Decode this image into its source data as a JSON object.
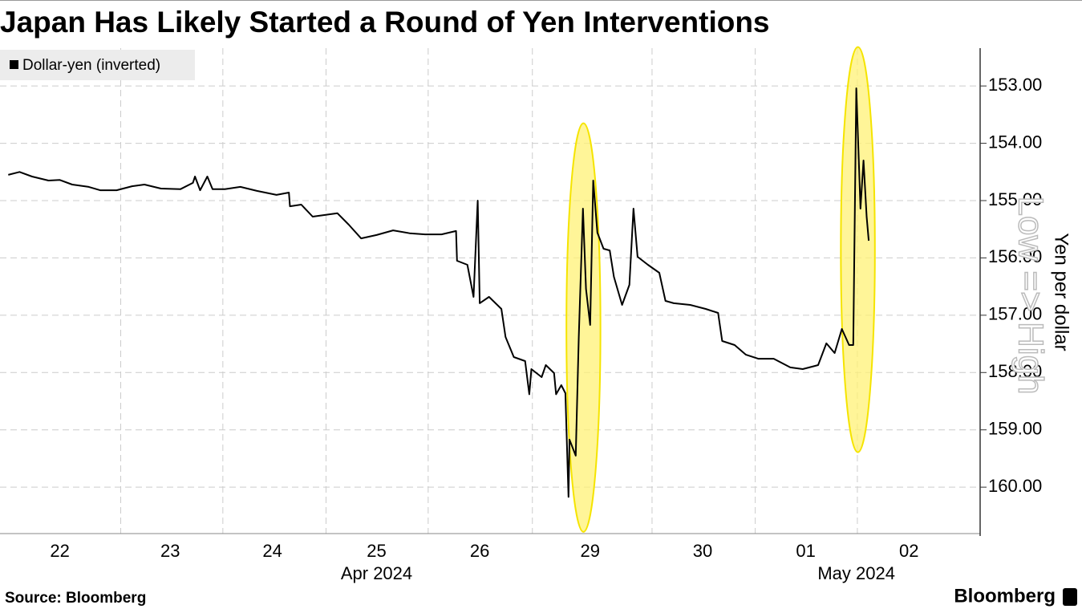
{
  "chart_data": {
    "type": "line",
    "title": "Japan Has Likely Started a Round of Yen Interventions",
    "legend_label": "Dollar-yen (inverted)",
    "ylabel": "Yen per dollar",
    "annotation": "Low => High",
    "source": "Source: Bloomberg",
    "logo": "Bloomberg",
    "y_inverted": true,
    "grid": true,
    "xlim": [
      0,
      9.5
    ],
    "ylim": [
      152.34,
      160.81
    ],
    "yticks": [
      {
        "value": 153,
        "label": "153.00"
      },
      {
        "value": 154,
        "label": "154.00"
      },
      {
        "value": 155,
        "label": "155.00"
      },
      {
        "value": 156,
        "label": "156.00"
      },
      {
        "value": 157,
        "label": "157.00"
      },
      {
        "value": 158,
        "label": "158.00"
      },
      {
        "value": 159,
        "label": "159.00"
      },
      {
        "value": 160,
        "label": "160.00"
      }
    ],
    "xticks": [
      {
        "value": 0.58,
        "label": "22"
      },
      {
        "value": 1.65,
        "label": "23"
      },
      {
        "value": 2.64,
        "label": "24"
      },
      {
        "value": 3.65,
        "label": "25"
      },
      {
        "value": 4.65,
        "label": "26"
      },
      {
        "value": 5.72,
        "label": "29"
      },
      {
        "value": 6.81,
        "label": "30"
      },
      {
        "value": 7.81,
        "label": "01"
      },
      {
        "value": 8.81,
        "label": "02"
      }
    ],
    "xgroups": [
      {
        "value": 3.65,
        "label": "Apr 2024"
      },
      {
        "value": 8.3,
        "label": "May 2024"
      }
    ],
    "xgrid": [
      1.17,
      2.16,
      3.16,
      4.15,
      5.16,
      6.32,
      7.32,
      8.31
    ],
    "highlights": [
      {
        "color": "#fff176",
        "x": [
          5.49,
          5.82
        ],
        "y": [
          153.65,
          160.78
        ]
      },
      {
        "color": "#fff176",
        "x": [
          8.15,
          8.48
        ],
        "y": [
          152.32,
          159.39
        ]
      }
    ],
    "x": [
      0.08,
      0.19,
      0.31,
      0.47,
      0.58,
      0.7,
      0.86,
      0.97,
      1.13,
      1.28,
      1.4,
      1.56,
      1.75,
      1.87,
      1.89,
      1.94,
      2.01,
      2.06,
      2.18,
      2.33,
      2.49,
      2.68,
      2.8,
      2.81,
      2.92,
      3.03,
      3.15,
      3.27,
      3.38,
      3.5,
      3.65,
      3.81,
      3.97,
      4.12,
      4.28,
      4.42,
      4.43,
      4.53,
      4.59,
      4.63,
      4.65,
      4.74,
      4.86,
      4.9,
      4.98,
      5.09,
      5.13,
      5.15,
      5.25,
      5.29,
      5.37,
      5.39,
      5.44,
      5.48,
      5.51,
      5.52,
      5.58,
      5.61,
      5.65,
      5.68,
      5.72,
      5.75,
      5.79,
      5.85,
      5.91,
      5.95,
      6.03,
      6.1,
      6.14,
      6.18,
      6.28,
      6.39,
      6.45,
      6.53,
      6.69,
      6.84,
      6.96,
      7.0,
      7.12,
      7.23,
      7.35,
      7.5,
      7.66,
      7.78,
      7.93,
      8.01,
      8.09,
      8.16,
      8.23,
      8.27,
      8.3,
      8.34,
      8.37,
      8.4,
      8.42
    ],
    "series": [
      {
        "name": "Dollar-yen (inverted)",
        "color": "#000000",
        "values": [
          154.55,
          154.5,
          154.58,
          154.65,
          154.64,
          154.72,
          154.76,
          154.82,
          154.82,
          154.75,
          154.72,
          154.79,
          154.8,
          154.69,
          154.58,
          154.82,
          154.58,
          154.8,
          154.8,
          154.76,
          154.83,
          154.9,
          154.86,
          155.1,
          155.07,
          155.28,
          155.25,
          155.22,
          155.42,
          155.66,
          155.6,
          155.52,
          155.57,
          155.59,
          155.59,
          155.53,
          156.05,
          156.12,
          156.68,
          155.0,
          156.79,
          156.68,
          156.89,
          157.38,
          157.73,
          157.8,
          158.38,
          157.94,
          158.08,
          157.87,
          158.01,
          158.38,
          158.22,
          158.36,
          160.17,
          159.17,
          159.45,
          157.38,
          155.14,
          156.54,
          157.17,
          154.65,
          155.56,
          155.84,
          155.87,
          156.33,
          156.82,
          156.47,
          155.14,
          155.98,
          156.12,
          156.26,
          156.75,
          156.79,
          156.82,
          156.89,
          156.96,
          157.45,
          157.52,
          157.69,
          157.76,
          157.76,
          157.91,
          157.94,
          157.87,
          157.49,
          157.66,
          157.24,
          157.52,
          157.52,
          153.04,
          155.14,
          154.3,
          155.28,
          155.7
        ]
      }
    ]
  }
}
